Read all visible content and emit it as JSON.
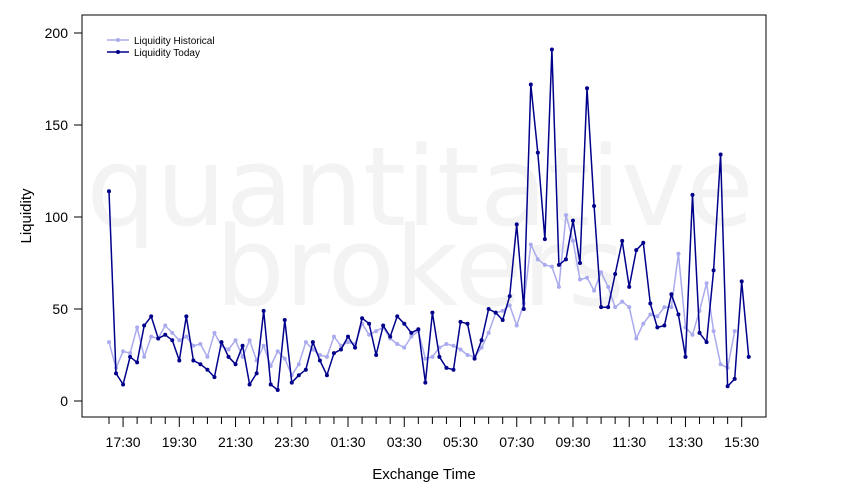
{
  "watermark": [
    "quantitative",
    "brokers"
  ],
  "chart_data": {
    "type": "line",
    "xlabel": "Exchange Time",
    "ylabel": "Liquidity",
    "ylim": [
      0,
      200
    ],
    "yticks": [
      0,
      50,
      100,
      150,
      200
    ],
    "xtick_labels": [
      "17:30",
      "19:30",
      "21:30",
      "23:30",
      "01:30",
      "03:30",
      "05:30",
      "07:30",
      "09:30",
      "11:30",
      "13:30",
      "15:30"
    ],
    "x_step_minutes": 15,
    "x_start": "17:00",
    "legend_position": "top-left",
    "grid": false,
    "colors": {
      "historical": "#aaaaee",
      "today": "#00008b"
    },
    "series": [
      {
        "name": "Liquidity Historical",
        "values": [
          32,
          18,
          27,
          26,
          40,
          24,
          35,
          34,
          41,
          37,
          33,
          35,
          30,
          31,
          24,
          37,
          30,
          28,
          33,
          24,
          33,
          22,
          30,
          19,
          27,
          23,
          14,
          20,
          32,
          28,
          25,
          24,
          35,
          30,
          32,
          31,
          42,
          36,
          38,
          40,
          34,
          31,
          29,
          35,
          38,
          23,
          24,
          29,
          31,
          30,
          28,
          25,
          24,
          29,
          37,
          48,
          49,
          52,
          41,
          53,
          85,
          77,
          74,
          73,
          62,
          101,
          87,
          66,
          67,
          60,
          70,
          62,
          51,
          54,
          51,
          34,
          42,
          47,
          46,
          51,
          51,
          80,
          40,
          36,
          49,
          64,
          38,
          20,
          18,
          38
        ]
      },
      {
        "name": "Liquidity Today",
        "values": [
          114,
          15,
          9,
          24,
          21,
          41,
          46,
          34,
          36,
          33,
          22,
          46,
          22,
          20,
          17,
          13,
          32,
          24,
          20,
          30,
          9,
          15,
          49,
          9,
          6,
          44,
          10,
          14,
          17,
          32,
          22,
          14,
          26,
          28,
          35,
          29,
          45,
          42,
          25,
          41,
          35,
          46,
          42,
          37,
          39,
          10,
          48,
          24,
          18,
          17,
          43,
          42,
          23,
          33,
          50,
          48,
          44,
          57,
          96,
          50,
          172,
          135,
          88,
          191,
          74,
          77,
          98,
          75,
          170,
          106,
          51,
          51,
          69,
          87,
          62,
          82,
          86,
          53,
          40,
          41,
          58,
          47,
          24,
          112,
          37,
          32,
          71,
          134,
          8,
          12,
          65,
          24
        ]
      }
    ]
  }
}
